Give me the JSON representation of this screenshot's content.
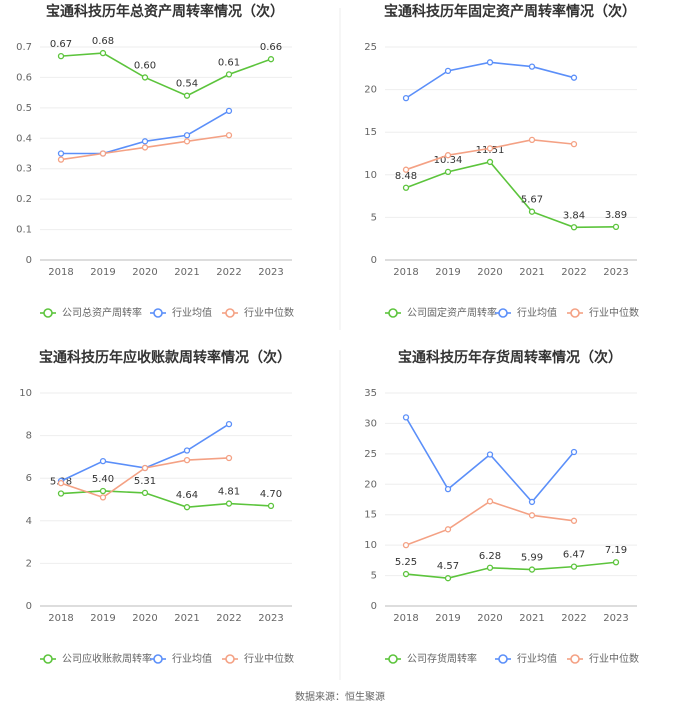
{
  "chart_data": [
    {
      "type": "line",
      "title": "宝通科技历年总资产周转率情况（次）",
      "categories": [
        "2018",
        "2019",
        "2020",
        "2021",
        "2022",
        "2023"
      ],
      "ylim": [
        0,
        0.7
      ],
      "yticks": [
        0,
        0.1,
        0.2,
        0.3,
        0.4,
        0.5,
        0.6,
        0.7
      ],
      "grid": true,
      "series": [
        {
          "name": "公司总资产周转率",
          "color": "#5cc43c",
          "values": [
            0.67,
            0.68,
            0.6,
            0.54,
            0.61,
            0.66
          ],
          "value_labels": [
            "0.67",
            "0.68",
            "0.60",
            "0.54",
            "0.61",
            "0.66"
          ]
        },
        {
          "name": "行业均值",
          "color": "#5b8ff9",
          "values": [
            0.35,
            0.35,
            0.39,
            0.41,
            0.49,
            null
          ]
        },
        {
          "name": "行业中位数",
          "color": "#f4a184",
          "values": [
            0.33,
            0.35,
            0.37,
            0.39,
            0.41,
            null
          ]
        }
      ]
    },
    {
      "type": "line",
      "title": "宝通科技历年固定资产周转率情况（次）",
      "categories": [
        "2018",
        "2019",
        "2020",
        "2021",
        "2022",
        "2023"
      ],
      "ylim": [
        0,
        25
      ],
      "yticks": [
        0,
        5,
        10,
        15,
        20,
        25
      ],
      "grid": true,
      "series": [
        {
          "name": "公司固定资产周转率",
          "color": "#5cc43c",
          "values": [
            8.48,
            10.34,
            11.51,
            5.67,
            3.84,
            3.89
          ]
        },
        {
          "name": "行业均值",
          "color": "#5b8ff9",
          "values": [
            19.0,
            22.2,
            23.2,
            22.7,
            21.4,
            null
          ]
        },
        {
          "name": "行业中位数",
          "color": "#f4a184",
          "values": [
            10.6,
            12.3,
            13.1,
            14.1,
            13.6,
            null
          ]
        }
      ]
    },
    {
      "type": "line",
      "title": "宝通科技历年应收账款周转率情况（次）",
      "categories": [
        "2018",
        "2019",
        "2020",
        "2021",
        "2022",
        "2023"
      ],
      "ylim": [
        0,
        10
      ],
      "yticks": [
        0,
        2,
        4,
        6,
        8,
        10
      ],
      "grid": true,
      "series": [
        {
          "name": "公司应收账款周转率",
          "color": "#5cc43c",
          "values": [
            5.28,
            5.4,
            5.31,
            4.64,
            4.81,
            4.7
          ],
          "value_labels": [
            "5.28",
            "5.40",
            "5.31",
            "4.64",
            "4.81",
            "4.70"
          ]
        },
        {
          "name": "行业均值",
          "color": "#5b8ff9",
          "values": [
            5.87,
            6.8,
            6.48,
            7.3,
            8.54,
            null
          ]
        },
        {
          "name": "行业中位数",
          "color": "#f4a184",
          "values": [
            5.77,
            5.1,
            6.48,
            6.85,
            6.95,
            null
          ]
        }
      ]
    },
    {
      "type": "line",
      "title": "宝通科技历年存货周转率情况（次）",
      "categories": [
        "2018",
        "2019",
        "2020",
        "2021",
        "2022",
        "2023"
      ],
      "ylim": [
        0,
        35
      ],
      "yticks": [
        0,
        5,
        10,
        15,
        20,
        25,
        30,
        35
      ],
      "grid": true,
      "series": [
        {
          "name": "公司存货周转率",
          "color": "#5cc43c",
          "values": [
            5.25,
            4.57,
            6.28,
            5.99,
            6.47,
            7.19
          ]
        },
        {
          "name": "行业均值",
          "color": "#5b8ff9",
          "values": [
            31.0,
            19.2,
            24.9,
            17.1,
            25.3,
            null
          ]
        },
        {
          "name": "行业中位数",
          "color": "#f4a184",
          "values": [
            10.0,
            12.6,
            17.2,
            14.9,
            14.0,
            null
          ]
        }
      ]
    }
  ],
  "source": "数据来源：恒生聚源"
}
